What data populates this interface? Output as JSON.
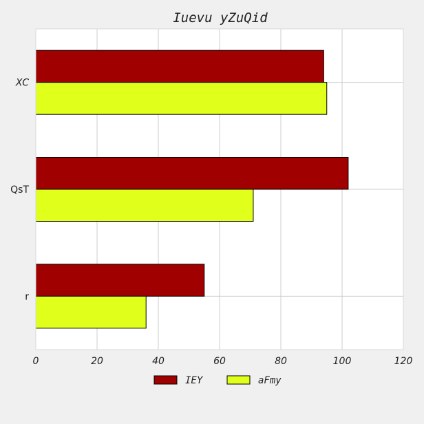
{
  "chart_data": {
    "type": "bar",
    "orientation": "horizontal",
    "title": "Iuevu yZuQid",
    "categories": [
      "XC",
      "QsT",
      "r"
    ],
    "series": [
      {
        "name": "IEY",
        "color": "#a00000",
        "values": [
          94,
          102,
          55
        ]
      },
      {
        "name": "aFmy",
        "color": "#e0ff1a",
        "values": [
          95,
          71,
          36
        ]
      }
    ],
    "xlim": [
      0,
      120
    ],
    "xticks": [
      0,
      20,
      40,
      60,
      80,
      100,
      120
    ],
    "xlabel": "",
    "ylabel": "",
    "grid": true,
    "legend_position": "bottom-center"
  }
}
